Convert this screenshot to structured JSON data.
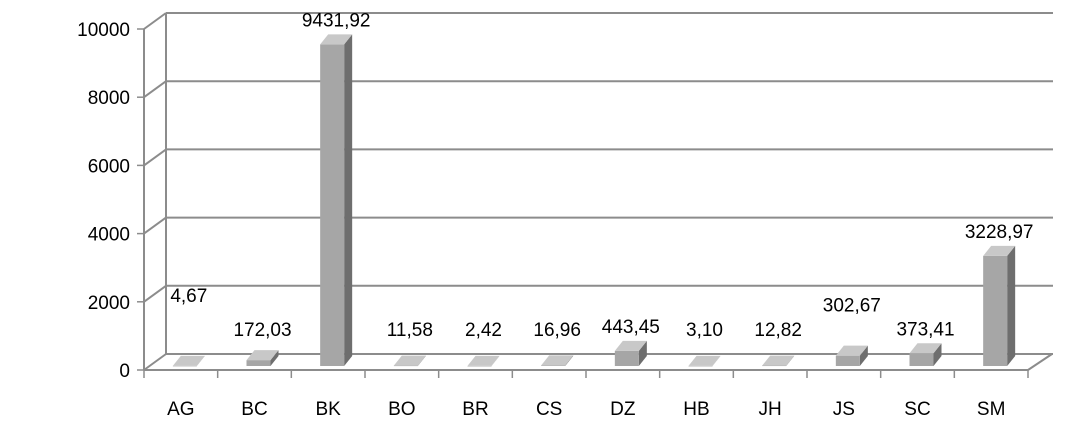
{
  "chart_data": {
    "type": "bar",
    "categories": [
      "AG",
      "BC",
      "BK",
      "BO",
      "BR",
      "CS",
      "DZ",
      "HB",
      "JH",
      "JS",
      "SC",
      "SM"
    ],
    "values": [
      4.67,
      172.03,
      9431.92,
      11.58,
      2.42,
      16.96,
      443.45,
      3.1,
      12.82,
      302.67,
      373.41,
      3228.97
    ],
    "data_labels": [
      "4,67",
      "172,03",
      "9431,92",
      "11,58",
      "2,42",
      "16,96",
      "443,45",
      "3,10",
      "12,82",
      "302,67",
      "373,41",
      "3228,97"
    ],
    "yticks": [
      0,
      2000,
      4000,
      6000,
      8000,
      10000
    ],
    "ylim": [
      0,
      10000
    ],
    "title": "",
    "xlabel": "",
    "ylabel": "",
    "grid": true,
    "legend": "none",
    "style": "3d-column",
    "colors": {
      "bar_front": "#a6a6a6",
      "bar_side": "#6e6e6e",
      "bar_top": "#c8c8c8",
      "grid": "#8c8c8c",
      "floor": "#8c8c8c"
    }
  }
}
